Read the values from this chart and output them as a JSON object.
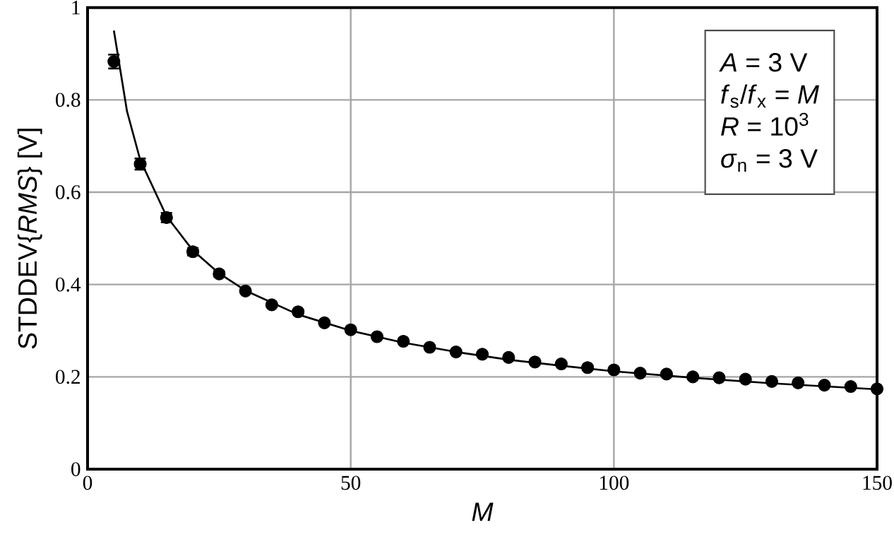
{
  "chart_data": {
    "type": "scatter",
    "xlabel": "*M*",
    "ylabel": "STDDEV{*RMS*} [V]",
    "xlim": [
      0,
      150
    ],
    "ylim": [
      0,
      1
    ],
    "xticks": [
      0,
      50,
      100,
      150
    ],
    "yticks": [
      0,
      0.2,
      0.4,
      0.6,
      0.8,
      1
    ],
    "grid": true,
    "series": [
      {
        "color": "#000000",
        "marker": "circle",
        "x": [
          5,
          10,
          15,
          20,
          25,
          30,
          35,
          40,
          45,
          50,
          55,
          60,
          65,
          70,
          75,
          80,
          85,
          90,
          95,
          100,
          105,
          110,
          115,
          120,
          125,
          130,
          135,
          140,
          145,
          150
        ],
        "values": [
          0.883,
          0.661,
          0.545,
          0.471,
          0.423,
          0.386,
          0.356,
          0.341,
          0.317,
          0.302,
          0.287,
          0.277,
          0.264,
          0.254,
          0.249,
          0.242,
          0.232,
          0.228,
          0.22,
          0.215,
          0.208,
          0.206,
          0.2,
          0.198,
          0.195,
          0.19,
          0.187,
          0.182,
          0.179,
          0.174
        ],
        "errors": [
          0.015,
          0.012,
          0.01,
          0.008,
          0.006,
          null,
          null,
          null,
          null,
          null,
          null,
          null,
          null,
          null,
          null,
          null,
          null,
          null,
          null,
          null,
          null,
          null,
          null,
          null,
          null,
          null,
          null,
          null,
          null,
          null
        ]
      },
      {
        "type": "line",
        "color": "#000000",
        "marker": "none",
        "line_style": "solid",
        "x": [
          5,
          7.5,
          10,
          15,
          20,
          25,
          30,
          40,
          50,
          60,
          70,
          80,
          90,
          100,
          115,
          130,
          150
        ],
        "values": [
          0.95,
          0.775,
          0.67,
          0.548,
          0.474,
          0.424,
          0.387,
          0.335,
          0.3,
          0.274,
          0.254,
          0.237,
          0.224,
          0.212,
          0.198,
          0.186,
          0.173
        ]
      }
    ],
    "annotations": [
      "*A* = 3 V",
      "*f*$_{s}$/*f*$_{x}$ = *M*",
      "*R* = 10$^{3}$",
      "*σ*$_{n}$ = 3 V"
    ]
  }
}
